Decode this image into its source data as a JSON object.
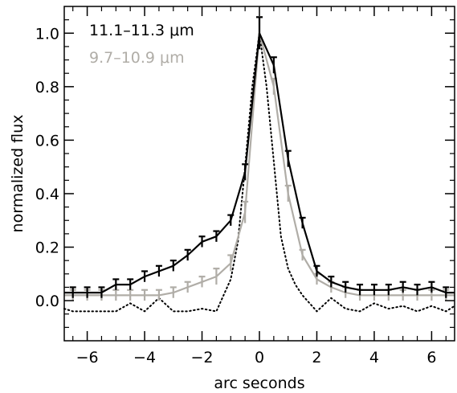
{
  "chart_data": {
    "type": "line",
    "xlabel": "arc seconds",
    "ylabel": "normalized flux",
    "xlim": [
      -6.8,
      6.8
    ],
    "ylim": [
      -0.15,
      1.1
    ],
    "xticks": [
      -6,
      -4,
      -2,
      0,
      2,
      4,
      6
    ],
    "xtick_labels": [
      "−6",
      "−4",
      "−2",
      "0",
      "2",
      "4",
      "6"
    ],
    "yticks": [
      0.0,
      0.2,
      0.4,
      0.6,
      0.8,
      1.0
    ],
    "ytick_labels": [
      "0.0",
      "0.2",
      "0.4",
      "0.6",
      "0.8",
      "1.0"
    ],
    "grid": false,
    "legend_position": "top-left",
    "series": [
      {
        "name": "11.1–11.3 μm",
        "color": "#000000",
        "style": "solid",
        "x": [
          -6.8,
          -6.5,
          -6.0,
          -5.5,
          -5.0,
          -4.5,
          -4.0,
          -3.5,
          -3.0,
          -2.5,
          -2.0,
          -1.5,
          -1.0,
          -0.5,
          0.0,
          0.5,
          1.0,
          1.5,
          2.0,
          2.5,
          3.0,
          3.5,
          4.0,
          4.5,
          5.0,
          5.5,
          6.0,
          6.5,
          6.8
        ],
        "y": [
          0.03,
          0.03,
          0.03,
          0.03,
          0.06,
          0.06,
          0.09,
          0.11,
          0.13,
          0.17,
          0.22,
          0.24,
          0.3,
          0.48,
          1.0,
          0.88,
          0.53,
          0.29,
          0.11,
          0.07,
          0.05,
          0.04,
          0.04,
          0.04,
          0.05,
          0.04,
          0.05,
          0.03,
          0.03
        ],
        "err": [
          0,
          0.02,
          0.02,
          0.02,
          0.02,
          0.02,
          0.02,
          0.02,
          0.02,
          0.02,
          0.02,
          0.02,
          0.02,
          0.03,
          0.06,
          0.03,
          0.03,
          0.02,
          0.02,
          0.02,
          0.02,
          0.02,
          0.02,
          0.02,
          0.02,
          0.02,
          0.02,
          0.02,
          0
        ]
      },
      {
        "name": "9.7–10.9 μm",
        "color": "#b0ada7",
        "style": "solid",
        "x": [
          -6.8,
          -6.5,
          -6.0,
          -5.5,
          -5.0,
          -4.5,
          -4.0,
          -3.5,
          -3.0,
          -2.5,
          -2.0,
          -1.5,
          -1.0,
          -0.5,
          0.0,
          0.5,
          1.0,
          1.5,
          2.0,
          2.5,
          3.0,
          3.5,
          4.0,
          4.5,
          5.0,
          5.5,
          6.0,
          6.5,
          6.8
        ],
        "y": [
          0.02,
          0.02,
          0.02,
          0.02,
          0.02,
          0.02,
          0.02,
          0.02,
          0.03,
          0.05,
          0.07,
          0.09,
          0.14,
          0.33,
          1.0,
          0.8,
          0.4,
          0.17,
          0.08,
          0.05,
          0.03,
          0.02,
          0.02,
          0.02,
          0.02,
          0.02,
          0.02,
          0.02,
          0.02
        ],
        "err": [
          0,
          0.02,
          0.02,
          0.02,
          0.02,
          0.02,
          0.02,
          0.02,
          0.02,
          0.02,
          0.02,
          0.03,
          0.03,
          0.04,
          0.06,
          0.03,
          0.03,
          0.02,
          0.02,
          0.02,
          0.02,
          0.02,
          0.02,
          0.02,
          0.02,
          0.02,
          0.02,
          0.02,
          0
        ]
      },
      {
        "name": "",
        "color": "#000000",
        "style": "dotted",
        "x": [
          -6.8,
          -6.5,
          -6.0,
          -5.5,
          -5.0,
          -4.5,
          -4.0,
          -3.5,
          -3.0,
          -2.5,
          -2.0,
          -1.5,
          -1.0,
          -0.75,
          -0.5,
          -0.25,
          0.0,
          0.25,
          0.5,
          0.75,
          1.0,
          1.25,
          1.5,
          2.0,
          2.5,
          3.0,
          3.5,
          4.0,
          4.5,
          5.0,
          5.5,
          6.0,
          6.5,
          6.8
        ],
        "y": [
          -0.03,
          -0.04,
          -0.04,
          -0.04,
          -0.04,
          -0.01,
          -0.04,
          0.01,
          -0.04,
          -0.04,
          -0.03,
          -0.04,
          0.08,
          0.22,
          0.5,
          0.8,
          1.0,
          0.8,
          0.52,
          0.24,
          0.12,
          0.06,
          0.02,
          -0.04,
          0.01,
          -0.03,
          -0.04,
          -0.01,
          -0.03,
          -0.02,
          -0.04,
          -0.02,
          -0.04,
          -0.02
        ]
      }
    ]
  }
}
